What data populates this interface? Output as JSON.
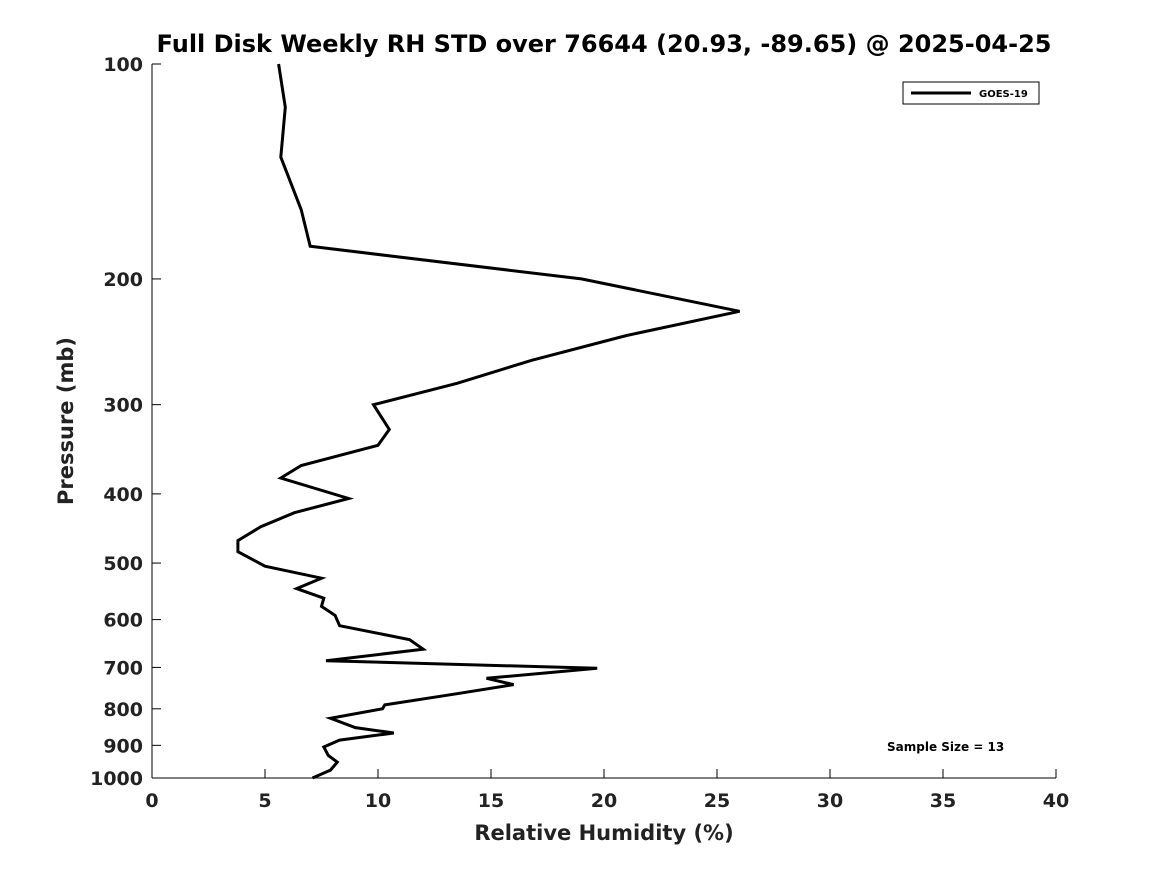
{
  "chart_data": {
    "type": "line",
    "title": "Full Disk Weekly RH STD over 76644 (20.93, -89.65) @ 2025-04-25",
    "xlabel": "Relative Humidity (%)",
    "ylabel": "Pressure (mb)",
    "xlim": [
      0,
      40
    ],
    "ylim": [
      1000,
      100
    ],
    "yscale": "log",
    "x_ticks": [
      0,
      5,
      10,
      15,
      20,
      25,
      30,
      35,
      40
    ],
    "y_ticks": [
      100,
      200,
      300,
      400,
      500,
      600,
      700,
      800,
      900,
      1000
    ],
    "grid": false,
    "legend": {
      "position": "top-right",
      "entries": [
        "GOES-19"
      ]
    },
    "annotation": "Sample Size = 13",
    "series": [
      {
        "name": "GOES-19",
        "color": "#000000",
        "points": [
          [
            5.6,
            100
          ],
          [
            5.9,
            115
          ],
          [
            5.7,
            135
          ],
          [
            6.6,
            160
          ],
          [
            7.0,
            180
          ],
          [
            19.0,
            200
          ],
          [
            26.0,
            222
          ],
          [
            21.0,
            240
          ],
          [
            16.8,
            260
          ],
          [
            13.5,
            280
          ],
          [
            9.8,
            300
          ],
          [
            10.5,
            325
          ],
          [
            10.0,
            342
          ],
          [
            6.6,
            365
          ],
          [
            5.7,
            380
          ],
          [
            8.7,
            406
          ],
          [
            6.3,
            425
          ],
          [
            4.8,
            445
          ],
          [
            3.8,
            465
          ],
          [
            3.8,
            482
          ],
          [
            5.0,
            505
          ],
          [
            7.5,
            525
          ],
          [
            6.4,
            543
          ],
          [
            7.6,
            560
          ],
          [
            7.5,
            575
          ],
          [
            8.1,
            592
          ],
          [
            8.3,
            612
          ],
          [
            11.4,
            640
          ],
          [
            12.0,
            660
          ],
          [
            7.7,
            685
          ],
          [
            19.7,
            702
          ],
          [
            14.8,
            725
          ],
          [
            16.0,
            740
          ],
          [
            13.5,
            762
          ],
          [
            10.3,
            790
          ],
          [
            10.2,
            800
          ],
          [
            7.9,
            825
          ],
          [
            9.0,
            850
          ],
          [
            10.7,
            865
          ],
          [
            8.3,
            885
          ],
          [
            7.6,
            905
          ],
          [
            7.8,
            930
          ],
          [
            8.2,
            950
          ],
          [
            7.9,
            975
          ],
          [
            7.1,
            1000
          ]
        ]
      }
    ]
  }
}
